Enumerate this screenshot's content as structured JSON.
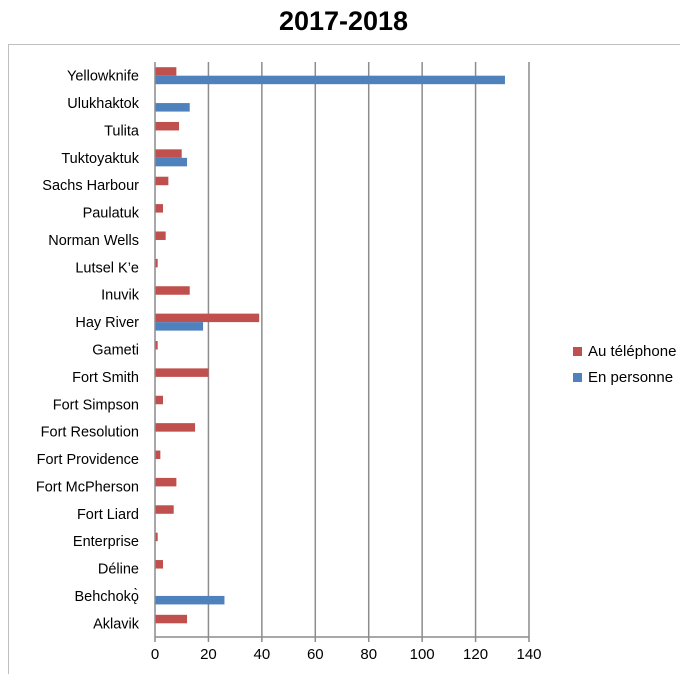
{
  "chart_data": {
    "type": "bar",
    "orientation": "horizontal",
    "title": "2017-2018",
    "categories": [
      "Yellowknife",
      "Ulukhaktok",
      "Tulita",
      "Tuktoyaktuk",
      "Sachs Harbour",
      "Paulatuk",
      "Norman Wells",
      "Lutsel K’e",
      "Inuvik",
      "Hay River",
      "Gameti",
      "Fort Smith",
      "Fort Simpson",
      "Fort Resolution",
      "Fort Providence",
      "Fort McPherson",
      "Fort Liard",
      "Enterprise",
      "Déline",
      "Behchokǫ̀",
      "Aklavik"
    ],
    "series": [
      {
        "name": "Au téléphone",
        "color": "#c0504d",
        "values": [
          8,
          0,
          9,
          10,
          5,
          3,
          4,
          1,
          13,
          39,
          1,
          20,
          3,
          15,
          2,
          8,
          7,
          1,
          3,
          0,
          12
        ]
      },
      {
        "name": "En personne",
        "color": "#4f81bd",
        "values": [
          131,
          13,
          0,
          12,
          0,
          0,
          0,
          0,
          0,
          18,
          0,
          0,
          0,
          0,
          0,
          0,
          0,
          0,
          0,
          26,
          0
        ]
      }
    ],
    "xlim": [
      0,
      140
    ],
    "xticks": [
      0,
      20,
      40,
      60,
      80,
      100,
      120,
      140
    ],
    "grid": true,
    "legend_position": "right"
  }
}
